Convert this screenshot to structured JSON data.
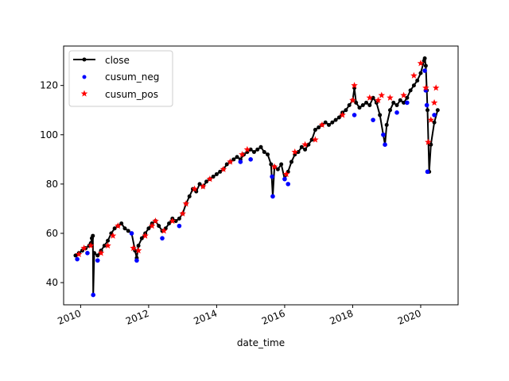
{
  "chart_data": {
    "type": "line",
    "xlabel": "date_time",
    "ylabel": "",
    "title": "",
    "xlim": [
      2009.5,
      2021.1
    ],
    "ylim": [
      31,
      136
    ],
    "x_ticks": [
      2010,
      2012,
      2014,
      2016,
      2018,
      2020
    ],
    "x_tick_labels": [
      "2010",
      "2012",
      "2014",
      "2016",
      "2018",
      "2020"
    ],
    "y_ticks": [
      40,
      60,
      80,
      100,
      120
    ],
    "y_tick_labels": [
      "40",
      "60",
      "80",
      "100",
      "120"
    ],
    "grid": false,
    "legend_position": "top-left",
    "colors": {
      "close": "#000000",
      "cusum_neg": "#0000ff",
      "cusum_pos": "#ff0000"
    },
    "series": [
      {
        "name": "close",
        "style": "line-with-dot-markers",
        "x": [
          2009.85,
          2009.95,
          2010.05,
          2010.15,
          2010.25,
          2010.3,
          2010.33,
          2010.36,
          2010.37,
          2010.4,
          2010.5,
          2010.6,
          2010.7,
          2010.8,
          2010.9,
          2011.0,
          2011.1,
          2011.2,
          2011.3,
          2011.4,
          2011.5,
          2011.6,
          2011.65,
          2011.7,
          2011.8,
          2011.9,
          2012.0,
          2012.1,
          2012.2,
          2012.3,
          2012.4,
          2012.5,
          2012.6,
          2012.7,
          2012.8,
          2012.9,
          2013.0,
          2013.1,
          2013.2,
          2013.3,
          2013.4,
          2013.5,
          2013.6,
          2013.7,
          2013.8,
          2013.9,
          2014.0,
          2014.1,
          2014.2,
          2014.3,
          2014.4,
          2014.5,
          2014.6,
          2014.7,
          2014.8,
          2014.9,
          2015.0,
          2015.1,
          2015.2,
          2015.3,
          2015.4,
          2015.5,
          2015.6,
          2015.65,
          2015.7,
          2015.8,
          2015.9,
          2016.0,
          2016.1,
          2016.2,
          2016.3,
          2016.4,
          2016.5,
          2016.6,
          2016.7,
          2016.8,
          2016.9,
          2017.0,
          2017.1,
          2017.2,
          2017.3,
          2017.4,
          2017.5,
          2017.6,
          2017.7,
          2017.8,
          2017.9,
          2018.0,
          2018.05,
          2018.1,
          2018.2,
          2018.3,
          2018.4,
          2018.5,
          2018.6,
          2018.7,
          2018.8,
          2018.9,
          2018.95,
          2019.0,
          2019.1,
          2019.2,
          2019.3,
          2019.4,
          2019.5,
          2019.6,
          2019.7,
          2019.8,
          2019.9,
          2020.0,
          2020.1,
          2020.12,
          2020.15,
          2020.18,
          2020.2,
          2020.25,
          2020.3,
          2020.4,
          2020.5
        ],
        "y": [
          51,
          52,
          53,
          54,
          55,
          56,
          58,
          59,
          35,
          52,
          51,
          53,
          55,
          57,
          60,
          62,
          63,
          64,
          62,
          61,
          60,
          53,
          50,
          55,
          58,
          60,
          62,
          64,
          65,
          63,
          61,
          62,
          64,
          66,
          65,
          66,
          68,
          72,
          75,
          78,
          77,
          80,
          79,
          81,
          82,
          83,
          84,
          85,
          86,
          88,
          89,
          90,
          91,
          90,
          92,
          93,
          94,
          93,
          94,
          95,
          93,
          92,
          88,
          75,
          87,
          86,
          88,
          82,
          85,
          89,
          92,
          93,
          95,
          94,
          96,
          98,
          102,
          103,
          104,
          105,
          104,
          105,
          106,
          107,
          109,
          110,
          112,
          114,
          119,
          113,
          111,
          112,
          113,
          112,
          115,
          113,
          108,
          100,
          96,
          104,
          110,
          113,
          112,
          114,
          113,
          115,
          118,
          120,
          122,
          125,
          130,
          131,
          128,
          118,
          110,
          85,
          96,
          105,
          110
        ]
      },
      {
        "name": "cusum_neg",
        "style": "blue-dot-markers",
        "x": [
          2009.9,
          2010.2,
          2010.37,
          2010.5,
          2011.5,
          2011.65,
          2012.4,
          2012.9,
          2014.7,
          2015.0,
          2015.63,
          2015.65,
          2016.0,
          2016.1,
          2018.05,
          2018.6,
          2018.9,
          2018.95,
          2019.3,
          2019.6,
          2020.12,
          2020.15,
          2020.18,
          2020.2,
          2020.4
        ],
        "y": [
          49.5,
          52,
          35,
          49,
          60,
          49,
          58,
          63,
          89,
          90,
          83,
          75,
          82,
          80,
          108,
          106,
          100,
          96,
          109,
          113,
          126,
          118,
          112,
          85,
          108
        ]
      },
      {
        "name": "cusum_pos",
        "style": "red-star-markers",
        "x": [
          2009.95,
          2010.1,
          2010.3,
          2010.6,
          2010.8,
          2010.95,
          2011.1,
          2011.55,
          2011.7,
          2011.9,
          2012.1,
          2012.2,
          2012.45,
          2012.7,
          2013.0,
          2013.1,
          2013.35,
          2013.6,
          2013.8,
          2014.2,
          2014.4,
          2014.75,
          2014.9,
          2015.7,
          2016.05,
          2016.3,
          2016.6,
          2016.9,
          2017.1,
          2017.7,
          2018.0,
          2018.05,
          2018.5,
          2018.75,
          2018.85,
          2019.1,
          2019.5,
          2019.8,
          2020.0,
          2020.15,
          2020.22,
          2020.3,
          2020.4,
          2020.45
        ],
        "y": [
          51.5,
          54,
          55,
          52,
          55,
          59,
          63,
          54,
          53,
          59,
          63,
          65,
          61,
          65,
          68,
          72,
          78,
          79,
          82,
          86,
          89,
          92,
          94,
          87,
          84,
          93,
          96,
          98,
          104,
          108,
          114,
          120,
          115,
          114,
          116,
          115,
          116,
          124,
          129,
          119,
          97,
          106,
          113,
          119
        ]
      }
    ]
  }
}
